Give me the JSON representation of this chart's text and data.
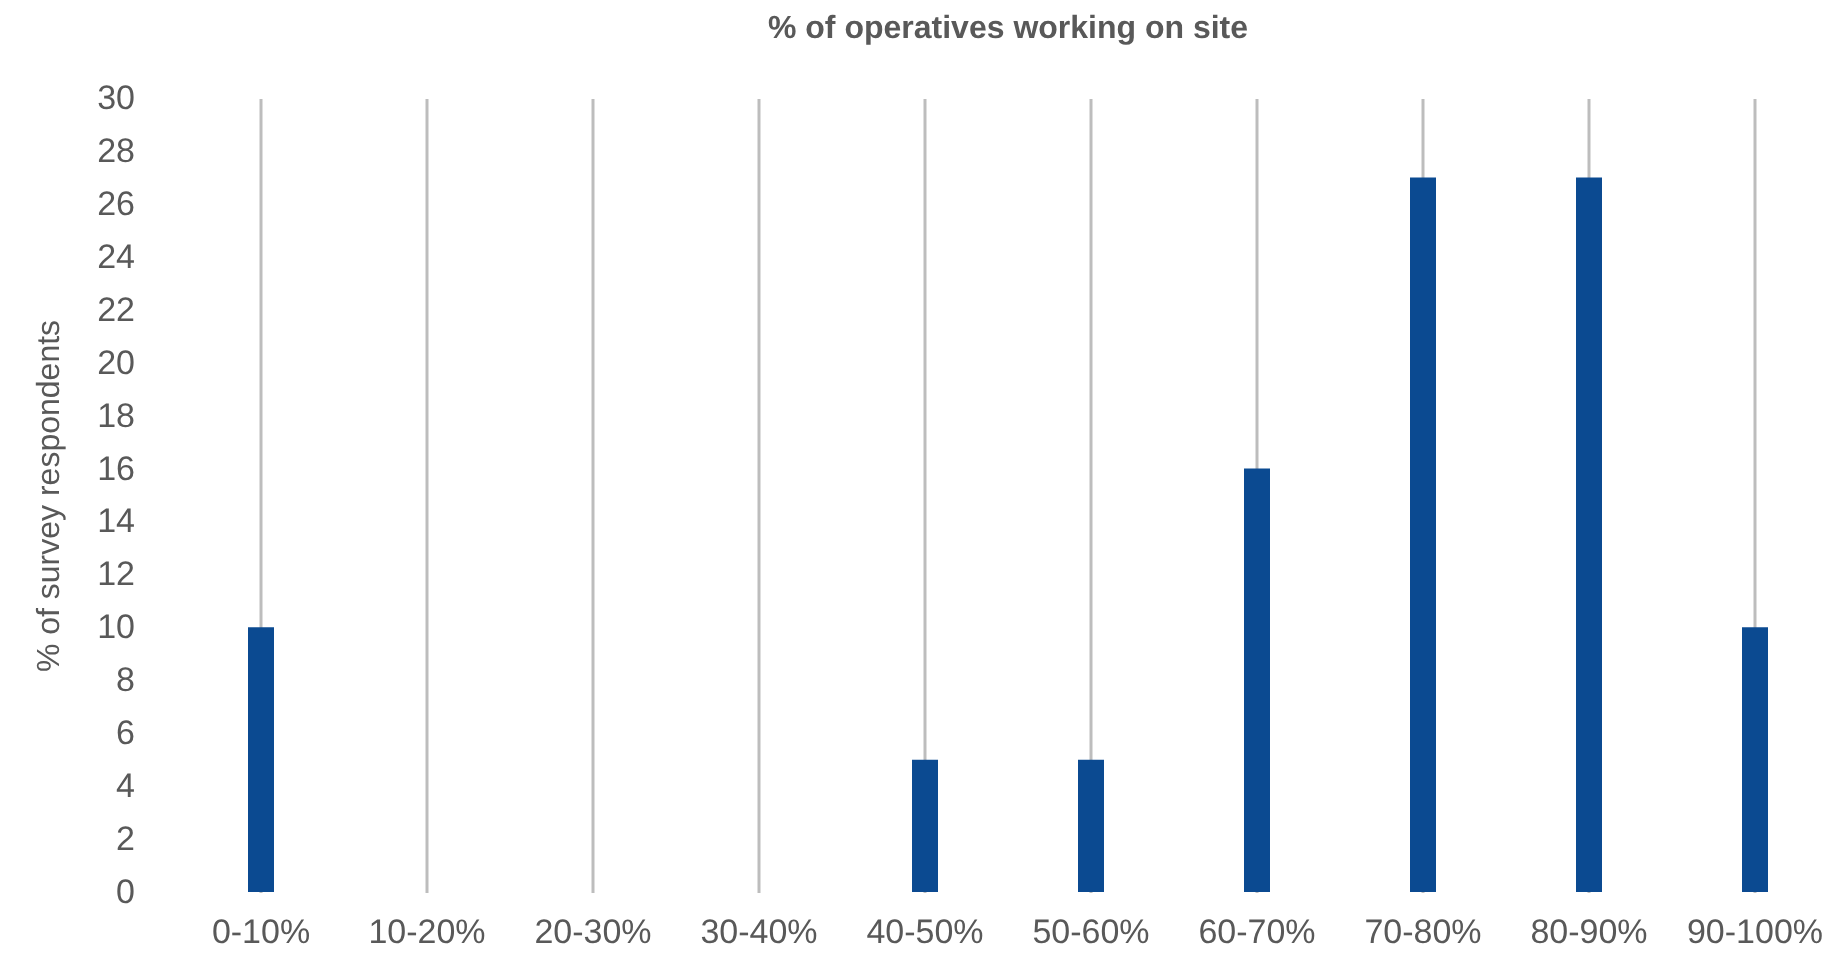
{
  "chart_data": {
    "type": "bar",
    "title": "% of operatives working on site",
    "ylabel": "% of survey respondents",
    "categories": [
      "0-10%",
      "10-20%",
      "20-30%",
      "30-40%",
      "40-50%",
      "50-60%",
      "60-70%",
      "70-80%",
      "80-90%",
      "90-100%"
    ],
    "values": [
      10,
      0,
      0,
      0,
      5,
      5,
      16,
      27,
      27,
      10
    ],
    "color": "#0b4a91",
    "ylim": [
      0,
      30
    ],
    "yticks": [
      0,
      2,
      4,
      6,
      8,
      10,
      12,
      14,
      16,
      18,
      20,
      22,
      24,
      26,
      28,
      30
    ],
    "grid": "x"
  }
}
